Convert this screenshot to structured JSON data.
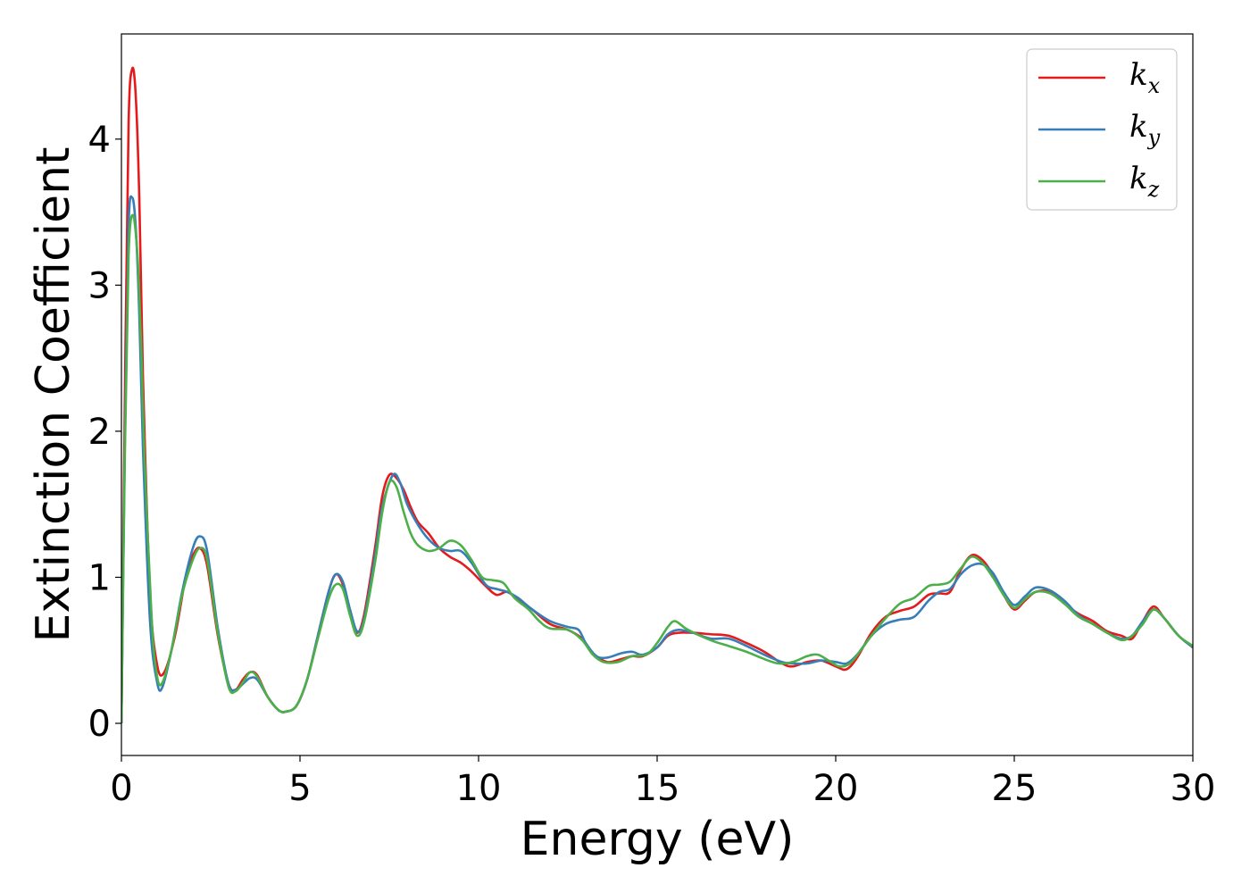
{
  "chart_data": {
    "type": "line",
    "xlabel": "Energy (eV)",
    "ylabel": "Extinction Coefficient",
    "xlim": [
      0,
      30
    ],
    "ylim": [
      -0.22,
      4.72
    ],
    "xticks": [
      0,
      5,
      10,
      15,
      20,
      25,
      30
    ],
    "yticks": [
      0,
      1,
      2,
      3,
      4
    ],
    "grid": false,
    "legend_position": "top-right",
    "series": [
      {
        "name": "k_x",
        "label_base": "k",
        "label_sub": "x",
        "color": "#e41a1c",
        "points": [
          [
            0,
            0
          ],
          [
            0.1,
            2.3
          ],
          [
            0.2,
            4.1
          ],
          [
            0.3,
            4.48
          ],
          [
            0.4,
            4.3
          ],
          [
            0.5,
            3.6
          ],
          [
            0.6,
            2.4
          ],
          [
            0.8,
            0.9
          ],
          [
            1.0,
            0.4
          ],
          [
            1.2,
            0.35
          ],
          [
            1.5,
            0.6
          ],
          [
            1.8,
            1.0
          ],
          [
            2.0,
            1.15
          ],
          [
            2.2,
            1.2
          ],
          [
            2.4,
            1.08
          ],
          [
            2.7,
            0.6
          ],
          [
            3.0,
            0.27
          ],
          [
            3.2,
            0.23
          ],
          [
            3.4,
            0.3
          ],
          [
            3.6,
            0.35
          ],
          [
            3.8,
            0.33
          ],
          [
            4.1,
            0.18
          ],
          [
            4.4,
            0.09
          ],
          [
            4.6,
            0.08
          ],
          [
            4.9,
            0.12
          ],
          [
            5.2,
            0.3
          ],
          [
            5.5,
            0.6
          ],
          [
            5.8,
            0.9
          ],
          [
            6.0,
            1.02
          ],
          [
            6.2,
            0.95
          ],
          [
            6.4,
            0.75
          ],
          [
            6.6,
            0.62
          ],
          [
            6.8,
            0.75
          ],
          [
            7.1,
            1.2
          ],
          [
            7.3,
            1.55
          ],
          [
            7.5,
            1.7
          ],
          [
            7.7,
            1.68
          ],
          [
            7.9,
            1.6
          ],
          [
            8.1,
            1.48
          ],
          [
            8.3,
            1.38
          ],
          [
            8.6,
            1.3
          ],
          [
            8.9,
            1.2
          ],
          [
            9.2,
            1.14
          ],
          [
            9.5,
            1.1
          ],
          [
            9.8,
            1.04
          ],
          [
            10.2,
            0.94
          ],
          [
            10.5,
            0.88
          ],
          [
            10.8,
            0.9
          ],
          [
            11.1,
            0.85
          ],
          [
            11.5,
            0.78
          ],
          [
            12.0,
            0.68
          ],
          [
            12.5,
            0.64
          ],
          [
            12.9,
            0.58
          ],
          [
            13.2,
            0.48
          ],
          [
            13.6,
            0.42
          ],
          [
            14.0,
            0.44
          ],
          [
            14.3,
            0.46
          ],
          [
            14.6,
            0.46
          ],
          [
            15.0,
            0.52
          ],
          [
            15.3,
            0.6
          ],
          [
            15.6,
            0.62
          ],
          [
            16.0,
            0.62
          ],
          [
            16.5,
            0.61
          ],
          [
            17.0,
            0.6
          ],
          [
            17.5,
            0.55
          ],
          [
            18.0,
            0.49
          ],
          [
            18.5,
            0.41
          ],
          [
            18.8,
            0.39
          ],
          [
            19.2,
            0.42
          ],
          [
            19.6,
            0.43
          ],
          [
            20.0,
            0.39
          ],
          [
            20.3,
            0.37
          ],
          [
            20.6,
            0.45
          ],
          [
            21.0,
            0.62
          ],
          [
            21.4,
            0.73
          ],
          [
            21.8,
            0.77
          ],
          [
            22.2,
            0.8
          ],
          [
            22.6,
            0.88
          ],
          [
            22.9,
            0.89
          ],
          [
            23.2,
            0.9
          ],
          [
            23.5,
            1.05
          ],
          [
            23.8,
            1.15
          ],
          [
            24.1,
            1.12
          ],
          [
            24.4,
            1.02
          ],
          [
            24.7,
            0.88
          ],
          [
            25.0,
            0.78
          ],
          [
            25.3,
            0.84
          ],
          [
            25.6,
            0.9
          ],
          [
            26.0,
            0.9
          ],
          [
            26.4,
            0.82
          ],
          [
            26.8,
            0.75
          ],
          [
            27.2,
            0.7
          ],
          [
            27.6,
            0.63
          ],
          [
            28.0,
            0.6
          ],
          [
            28.3,
            0.58
          ],
          [
            28.6,
            0.7
          ],
          [
            28.9,
            0.8
          ],
          [
            29.2,
            0.72
          ],
          [
            29.6,
            0.6
          ],
          [
            30.0,
            0.52
          ]
        ]
      },
      {
        "name": "k_y",
        "label_base": "k",
        "label_sub": "y",
        "color": "#377eb8",
        "points": [
          [
            0,
            0
          ],
          [
            0.1,
            2.0
          ],
          [
            0.2,
            3.4
          ],
          [
            0.3,
            3.6
          ],
          [
            0.4,
            3.4
          ],
          [
            0.5,
            2.8
          ],
          [
            0.6,
            1.9
          ],
          [
            0.8,
            0.7
          ],
          [
            1.0,
            0.28
          ],
          [
            1.15,
            0.25
          ],
          [
            1.4,
            0.5
          ],
          [
            1.7,
            0.9
          ],
          [
            2.0,
            1.2
          ],
          [
            2.2,
            1.28
          ],
          [
            2.4,
            1.18
          ],
          [
            2.7,
            0.65
          ],
          [
            3.0,
            0.27
          ],
          [
            3.2,
            0.23
          ],
          [
            3.4,
            0.27
          ],
          [
            3.6,
            0.31
          ],
          [
            3.8,
            0.3
          ],
          [
            4.1,
            0.18
          ],
          [
            4.4,
            0.09
          ],
          [
            4.6,
            0.08
          ],
          [
            4.9,
            0.12
          ],
          [
            5.2,
            0.3
          ],
          [
            5.5,
            0.6
          ],
          [
            5.8,
            0.9
          ],
          [
            6.0,
            1.02
          ],
          [
            6.2,
            0.97
          ],
          [
            6.4,
            0.78
          ],
          [
            6.6,
            0.63
          ],
          [
            6.8,
            0.72
          ],
          [
            7.1,
            1.15
          ],
          [
            7.3,
            1.48
          ],
          [
            7.6,
            1.7
          ],
          [
            7.8,
            1.65
          ],
          [
            8.0,
            1.5
          ],
          [
            8.3,
            1.36
          ],
          [
            8.6,
            1.26
          ],
          [
            8.9,
            1.2
          ],
          [
            9.2,
            1.18
          ],
          [
            9.5,
            1.18
          ],
          [
            9.8,
            1.1
          ],
          [
            10.2,
            0.95
          ],
          [
            10.5,
            0.92
          ],
          [
            10.8,
            0.9
          ],
          [
            11.1,
            0.86
          ],
          [
            11.5,
            0.78
          ],
          [
            12.0,
            0.7
          ],
          [
            12.5,
            0.66
          ],
          [
            12.8,
            0.64
          ],
          [
            13.0,
            0.55
          ],
          [
            13.3,
            0.46
          ],
          [
            13.6,
            0.45
          ],
          [
            14.0,
            0.48
          ],
          [
            14.3,
            0.49
          ],
          [
            14.6,
            0.47
          ],
          [
            15.0,
            0.52
          ],
          [
            15.3,
            0.61
          ],
          [
            15.6,
            0.64
          ],
          [
            16.0,
            0.62
          ],
          [
            16.5,
            0.58
          ],
          [
            17.0,
            0.58
          ],
          [
            17.5,
            0.53
          ],
          [
            18.0,
            0.47
          ],
          [
            18.5,
            0.42
          ],
          [
            18.8,
            0.41
          ],
          [
            19.2,
            0.41
          ],
          [
            19.6,
            0.43
          ],
          [
            20.0,
            0.42
          ],
          [
            20.3,
            0.41
          ],
          [
            20.6,
            0.47
          ],
          [
            21.0,
            0.6
          ],
          [
            21.4,
            0.68
          ],
          [
            21.8,
            0.71
          ],
          [
            22.2,
            0.73
          ],
          [
            22.6,
            0.84
          ],
          [
            22.9,
            0.9
          ],
          [
            23.2,
            0.92
          ],
          [
            23.5,
            1.02
          ],
          [
            23.8,
            1.08
          ],
          [
            24.1,
            1.09
          ],
          [
            24.4,
            1.03
          ],
          [
            24.7,
            0.9
          ],
          [
            25.0,
            0.81
          ],
          [
            25.3,
            0.87
          ],
          [
            25.6,
            0.93
          ],
          [
            26.0,
            0.91
          ],
          [
            26.4,
            0.84
          ],
          [
            26.8,
            0.74
          ],
          [
            27.2,
            0.68
          ],
          [
            27.6,
            0.62
          ],
          [
            28.0,
            0.58
          ],
          [
            28.3,
            0.6
          ],
          [
            28.6,
            0.7
          ],
          [
            28.9,
            0.78
          ],
          [
            29.2,
            0.72
          ],
          [
            29.6,
            0.6
          ],
          [
            30.0,
            0.52
          ]
        ]
      },
      {
        "name": "k_z",
        "label_base": "k",
        "label_sub": "z",
        "color": "#4daf4a",
        "points": [
          [
            0,
            0
          ],
          [
            0.1,
            1.9
          ],
          [
            0.2,
            3.2
          ],
          [
            0.32,
            3.48
          ],
          [
            0.45,
            3.2
          ],
          [
            0.55,
            2.6
          ],
          [
            0.65,
            1.8
          ],
          [
            0.85,
            0.7
          ],
          [
            1.0,
            0.32
          ],
          [
            1.15,
            0.28
          ],
          [
            1.4,
            0.5
          ],
          [
            1.7,
            0.88
          ],
          [
            2.0,
            1.12
          ],
          [
            2.2,
            1.2
          ],
          [
            2.4,
            1.12
          ],
          [
            2.7,
            0.62
          ],
          [
            3.0,
            0.25
          ],
          [
            3.2,
            0.22
          ],
          [
            3.4,
            0.28
          ],
          [
            3.6,
            0.35
          ],
          [
            3.8,
            0.32
          ],
          [
            4.1,
            0.18
          ],
          [
            4.4,
            0.09
          ],
          [
            4.6,
            0.08
          ],
          [
            4.9,
            0.12
          ],
          [
            5.2,
            0.3
          ],
          [
            5.5,
            0.58
          ],
          [
            5.8,
            0.85
          ],
          [
            6.0,
            0.95
          ],
          [
            6.2,
            0.92
          ],
          [
            6.4,
            0.74
          ],
          [
            6.6,
            0.6
          ],
          [
            6.8,
            0.7
          ],
          [
            7.1,
            1.1
          ],
          [
            7.3,
            1.44
          ],
          [
            7.5,
            1.65
          ],
          [
            7.7,
            1.62
          ],
          [
            7.9,
            1.45
          ],
          [
            8.1,
            1.3
          ],
          [
            8.3,
            1.22
          ],
          [
            8.6,
            1.18
          ],
          [
            8.9,
            1.2
          ],
          [
            9.2,
            1.25
          ],
          [
            9.5,
            1.22
          ],
          [
            9.8,
            1.12
          ],
          [
            10.1,
            1.0
          ],
          [
            10.4,
            0.98
          ],
          [
            10.7,
            0.96
          ],
          [
            11.0,
            0.86
          ],
          [
            11.4,
            0.78
          ],
          [
            11.7,
            0.7
          ],
          [
            12.0,
            0.65
          ],
          [
            12.5,
            0.64
          ],
          [
            12.9,
            0.57
          ],
          [
            13.2,
            0.47
          ],
          [
            13.5,
            0.42
          ],
          [
            13.9,
            0.42
          ],
          [
            14.3,
            0.46
          ],
          [
            14.7,
            0.47
          ],
          [
            15.0,
            0.55
          ],
          [
            15.3,
            0.66
          ],
          [
            15.5,
            0.7
          ],
          [
            15.8,
            0.65
          ],
          [
            16.2,
            0.6
          ],
          [
            16.6,
            0.56
          ],
          [
            17.0,
            0.53
          ],
          [
            17.5,
            0.49
          ],
          [
            18.0,
            0.44
          ],
          [
            18.4,
            0.41
          ],
          [
            18.8,
            0.42
          ],
          [
            19.2,
            0.46
          ],
          [
            19.5,
            0.47
          ],
          [
            19.8,
            0.43
          ],
          [
            20.1,
            0.39
          ],
          [
            20.4,
            0.41
          ],
          [
            20.7,
            0.5
          ],
          [
            21.0,
            0.6
          ],
          [
            21.4,
            0.72
          ],
          [
            21.8,
            0.82
          ],
          [
            22.2,
            0.86
          ],
          [
            22.6,
            0.94
          ],
          [
            22.9,
            0.95
          ],
          [
            23.2,
            0.97
          ],
          [
            23.5,
            1.06
          ],
          [
            23.8,
            1.14
          ],
          [
            24.1,
            1.1
          ],
          [
            24.4,
            1.0
          ],
          [
            24.7,
            0.88
          ],
          [
            25.0,
            0.79
          ],
          [
            25.3,
            0.85
          ],
          [
            25.6,
            0.9
          ],
          [
            26.0,
            0.89
          ],
          [
            26.4,
            0.82
          ],
          [
            26.8,
            0.73
          ],
          [
            27.2,
            0.68
          ],
          [
            27.6,
            0.62
          ],
          [
            28.0,
            0.57
          ],
          [
            28.3,
            0.6
          ],
          [
            28.6,
            0.68
          ],
          [
            28.9,
            0.78
          ],
          [
            29.2,
            0.72
          ],
          [
            29.6,
            0.6
          ],
          [
            30.0,
            0.53
          ]
        ]
      }
    ]
  }
}
